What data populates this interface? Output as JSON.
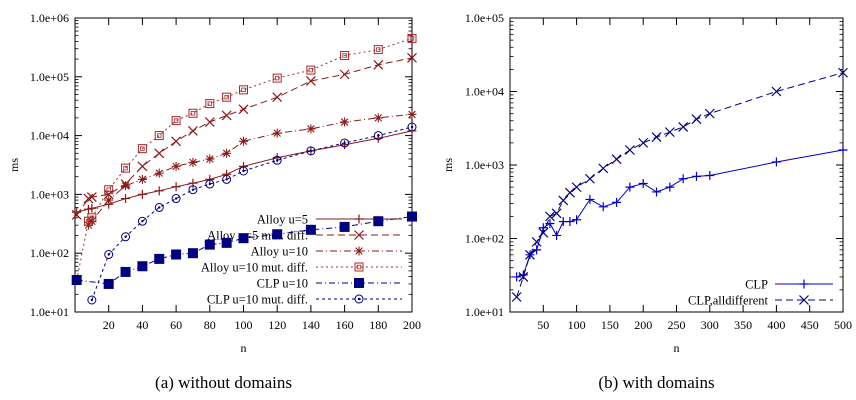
{
  "chart_data": [
    {
      "type": "line",
      "caption": "(a) without domains",
      "xlabel": "n",
      "ylabel": "ms",
      "log_y": true,
      "xlim": [
        0,
        200
      ],
      "ylim": [
        10,
        1000000
      ],
      "x_ticks": [
        20,
        40,
        60,
        80,
        100,
        120,
        140,
        160,
        180,
        200
      ],
      "y_ticks": [
        10,
        100,
        1000,
        10000,
        100000,
        1000000
      ],
      "y_tick_labels": [
        "1.0e+01",
        "1.0e+02",
        "1.0e+03",
        "1.0e+04",
        "1.0e+05",
        "1.0e+06"
      ],
      "grid": false,
      "legend_position": "bottom-right",
      "series": [
        {
          "name": "Alloy u=5",
          "color": "#8b1a1a",
          "dash": "",
          "marker": "plus",
          "x": [
            1,
            8,
            10,
            20,
            30,
            40,
            50,
            60,
            70,
            80,
            90,
            100,
            120,
            140,
            160,
            180,
            200
          ],
          "y": [
            500,
            560,
            580,
            680,
            850,
            1000,
            1150,
            1350,
            1550,
            1800,
            2200,
            3000,
            4200,
            5500,
            7000,
            9000,
            12000
          ]
        },
        {
          "name": "Alloy u=5 mut. diff.",
          "color": "#8b1a1a",
          "dash": "7,4",
          "marker": "x",
          "x": [
            1,
            8,
            10,
            20,
            30,
            40,
            50,
            60,
            70,
            80,
            90,
            100,
            120,
            140,
            160,
            180,
            200
          ],
          "y": [
            450,
            850,
            900,
            1000,
            1500,
            3000,
            5000,
            8000,
            12000,
            17000,
            22000,
            28000,
            45000,
            85000,
            110000,
            160000,
            210000
          ]
        },
        {
          "name": "Alloy u=10",
          "color": "#8b1a1a",
          "dash": "7,3,1,3",
          "marker": "star",
          "x": [
            8,
            10,
            20,
            30,
            40,
            50,
            60,
            70,
            80,
            90,
            100,
            120,
            140,
            160,
            180,
            200
          ],
          "y": [
            300,
            350,
            800,
            1400,
            1800,
            2300,
            3000,
            3500,
            4000,
            5000,
            8000,
            11000,
            13000,
            17000,
            20000,
            23000
          ]
        },
        {
          "name": "Alloy u=10 mut. diff.",
          "color": "#a52a2a",
          "dash": "2,3",
          "marker": "square-open",
          "x": [
            1,
            8,
            10,
            20,
            30,
            40,
            50,
            60,
            70,
            80,
            90,
            100,
            120,
            140,
            160,
            180,
            200
          ],
          "y": [
            35,
            350,
            400,
            1200,
            2800,
            6000,
            10000,
            18000,
            24000,
            35000,
            45000,
            60000,
            95000,
            130000,
            230000,
            290000,
            450000
          ]
        },
        {
          "name": "CLP u=10",
          "color": "#000080",
          "dash": "6,3,1,3",
          "marker": "square-filled",
          "x": [
            1,
            20,
            30,
            40,
            50,
            60,
            70,
            80,
            90,
            100,
            120,
            140,
            160,
            180,
            200
          ],
          "y": [
            35,
            30,
            48,
            60,
            80,
            95,
            100,
            140,
            150,
            180,
            210,
            250,
            280,
            350,
            420
          ]
        },
        {
          "name": "CLP u=10 mut. diff.",
          "color": "#000080",
          "dash": "3,3",
          "marker": "circle-open",
          "x": [
            10,
            20,
            30,
            40,
            50,
            60,
            70,
            80,
            90,
            100,
            120,
            140,
            160,
            180,
            200
          ],
          "y": [
            16,
            95,
            190,
            350,
            600,
            850,
            1200,
            1500,
            1800,
            2500,
            3800,
            5500,
            7500,
            10000,
            14000
          ]
        }
      ]
    },
    {
      "type": "line",
      "caption": "(b) with domains",
      "xlabel": "n",
      "ylabel": "ms",
      "log_y": true,
      "xlim": [
        0,
        500
      ],
      "ylim": [
        10,
        100000
      ],
      "x_ticks": [
        50,
        100,
        150,
        200,
        250,
        300,
        350,
        400,
        450,
        500
      ],
      "y_ticks": [
        10,
        100,
        1000,
        10000,
        100000
      ],
      "y_tick_labels": [
        "1.0e+01",
        "1.0e+02",
        "1.0e+03",
        "1.0e+04",
        "1.0e+05"
      ],
      "grid": false,
      "legend_position": "bottom-right",
      "series": [
        {
          "name": "CLP",
          "color": "#0000cc",
          "dash": "",
          "marker": "plus",
          "x": [
            10,
            20,
            30,
            40,
            50,
            60,
            70,
            80,
            90,
            100,
            120,
            140,
            160,
            180,
            200,
            220,
            240,
            260,
            280,
            300,
            400,
            500
          ],
          "y": [
            30,
            32,
            60,
            70,
            140,
            160,
            110,
            170,
            170,
            180,
            340,
            270,
            310,
            500,
            560,
            430,
            500,
            650,
            700,
            720,
            1100,
            1600
          ]
        },
        {
          "name": "CLP,alldifferent",
          "color": "#000080",
          "dash": "7,4",
          "marker": "x",
          "x": [
            10,
            20,
            30,
            40,
            50,
            60,
            70,
            80,
            90,
            100,
            120,
            140,
            160,
            180,
            200,
            220,
            240,
            260,
            280,
            300,
            400,
            500
          ],
          "y": [
            16,
            30,
            60,
            90,
            120,
            200,
            220,
            330,
            420,
            500,
            650,
            900,
            1200,
            1600,
            2000,
            2400,
            2800,
            3300,
            4200,
            5000,
            10000,
            18000
          ]
        }
      ]
    }
  ]
}
